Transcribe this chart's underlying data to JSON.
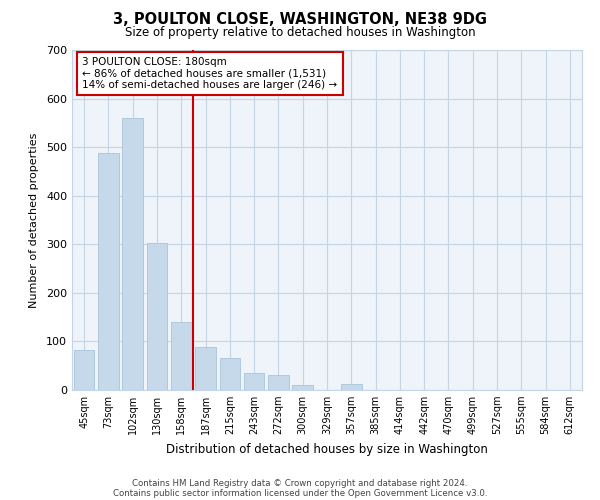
{
  "title": "3, POULTON CLOSE, WASHINGTON, NE38 9DG",
  "subtitle": "Size of property relative to detached houses in Washington",
  "xlabel": "Distribution of detached houses by size in Washington",
  "ylabel": "Number of detached properties",
  "categories": [
    "45sqm",
    "73sqm",
    "102sqm",
    "130sqm",
    "158sqm",
    "187sqm",
    "215sqm",
    "243sqm",
    "272sqm",
    "300sqm",
    "329sqm",
    "357sqm",
    "385sqm",
    "414sqm",
    "442sqm",
    "470sqm",
    "499sqm",
    "527sqm",
    "555sqm",
    "584sqm",
    "612sqm"
  ],
  "values": [
    82,
    487,
    560,
    303,
    140,
    88,
    65,
    36,
    30,
    11,
    0,
    12,
    0,
    0,
    0,
    0,
    0,
    0,
    0,
    0,
    0
  ],
  "bar_color": "#c5d9ea",
  "bar_edge_color": "#a8c4d8",
  "vline_color": "#cc0000",
  "annotation_title": "3 POULTON CLOSE: 180sqm",
  "annotation_line1": "← 86% of detached houses are smaller (1,531)",
  "annotation_line2": "14% of semi-detached houses are larger (246) →",
  "annotation_box_color": "#ffffff",
  "annotation_box_edge_color": "#cc0000",
  "ylim": [
    0,
    700
  ],
  "yticks": [
    0,
    100,
    200,
    300,
    400,
    500,
    600,
    700
  ],
  "footer_line1": "Contains HM Land Registry data © Crown copyright and database right 2024.",
  "footer_line2": "Contains public sector information licensed under the Open Government Licence v3.0.",
  "background_color": "#ffffff",
  "plot_bg_color": "#eef4f9",
  "grid_color": "#c5d5e5"
}
